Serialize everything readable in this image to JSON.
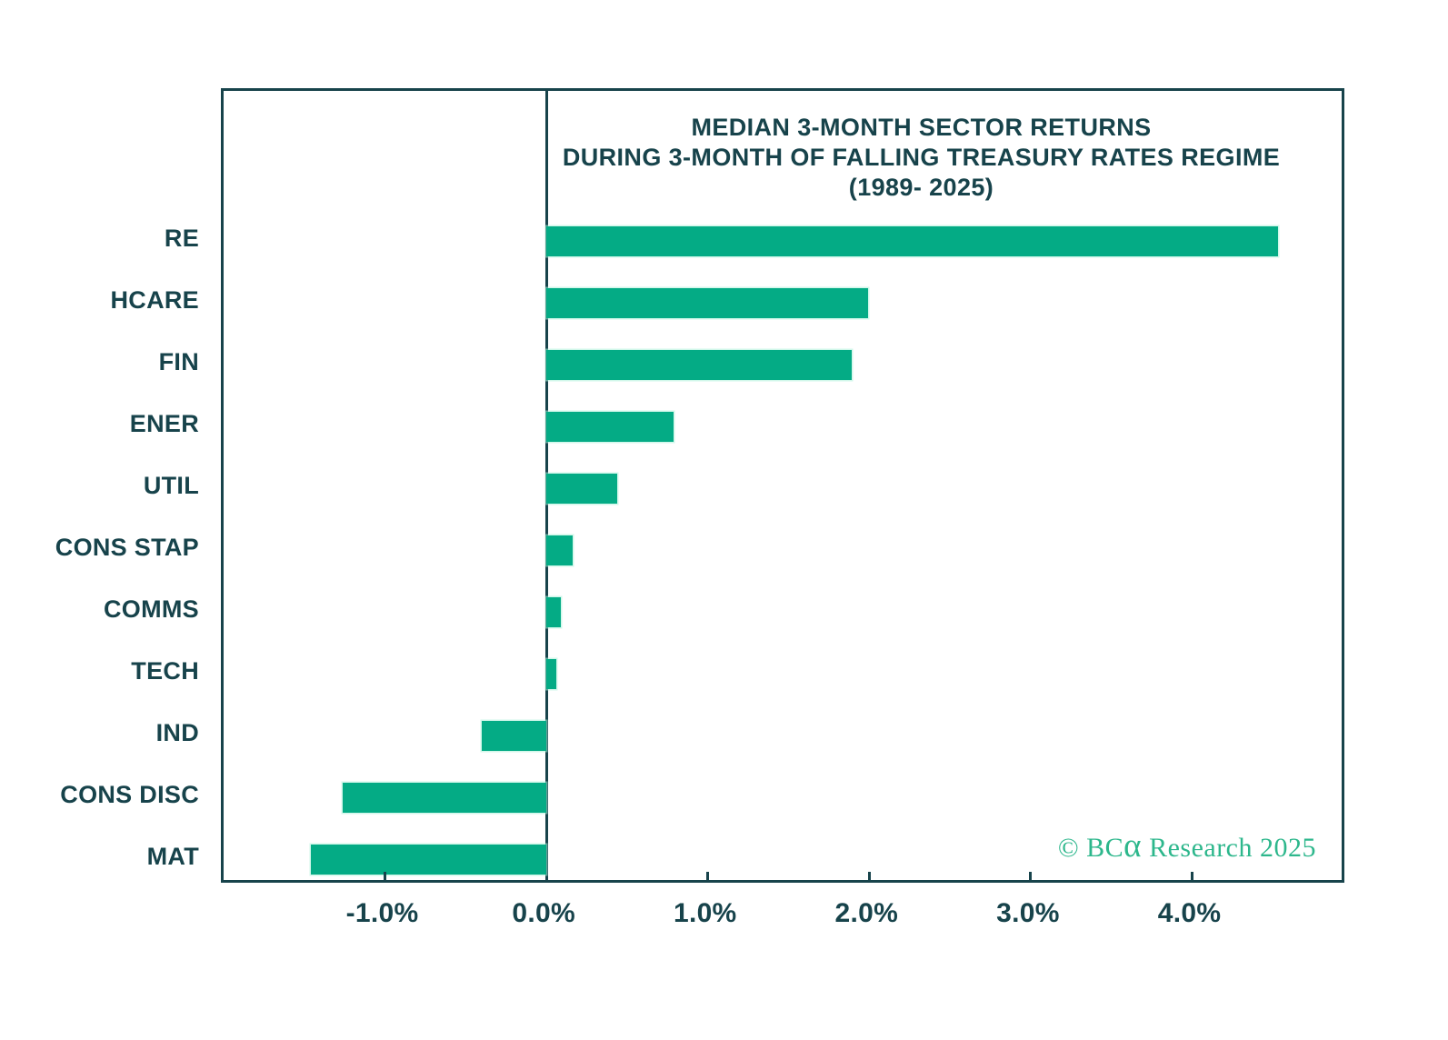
{
  "chart_data": {
    "type": "bar",
    "orientation": "horizontal",
    "title_lines": [
      "MEDIAN 3-MONTH SECTOR RETURNS",
      "DURING 3-MONTH OF FALLING TREASURY RATES REGIME",
      "(1989- 2025)"
    ],
    "categories": [
      "RE",
      "HCARE",
      "FIN",
      "ENER",
      "UTIL",
      "CONS STAP",
      "COMMS",
      "TECH",
      "IND",
      "CONS DISC",
      "MAT"
    ],
    "values": [
      4.53,
      1.99,
      1.89,
      0.79,
      0.44,
      0.16,
      0.09,
      0.06,
      -0.4,
      -1.26,
      -1.46
    ],
    "unit": "%",
    "xlim": [
      -2.0,
      4.96
    ],
    "xticks": [
      -1.0,
      0.0,
      1.0,
      2.0,
      3.0,
      4.0
    ],
    "xtick_labels": [
      "-1.0%",
      "0.0%",
      "1.0%",
      "2.0%",
      "3.0%",
      "4.0%"
    ],
    "grid": false,
    "legend": "none",
    "colors": {
      "bar": "#04ab85",
      "frame": "#17434b",
      "text": "#17434b",
      "background": "#ffffff"
    }
  },
  "watermark": {
    "prefix": "© BC",
    "alpha": "α",
    "suffix": " Research 2025",
    "color": "#2db78c"
  }
}
